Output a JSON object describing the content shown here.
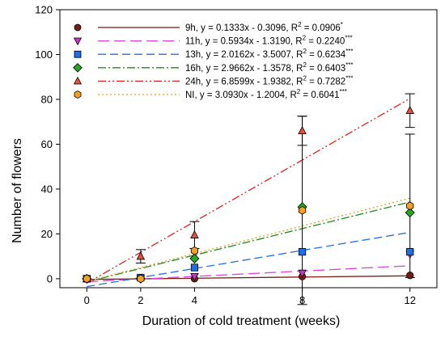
{
  "chart_data": {
    "type": "scatter",
    "xlabel": "Duration of cold treatment (weeks)",
    "ylabel": "Number of flowers",
    "xlim": [
      -1,
      13
    ],
    "ylim": [
      -4,
      120
    ],
    "xticks": [
      0,
      2,
      4,
      8,
      12
    ],
    "yticks": [
      0,
      20,
      40,
      60,
      80,
      100,
      120
    ],
    "grid": false,
    "legend_position": "top-left",
    "series": [
      {
        "name": "9h",
        "legend_label": "9h, y = 0.1333x - 0.3096, R² = 0.0906*",
        "eq_text": "9h, y = 0.1333x - 0.3096, R",
        "sig": "*",
        "marker": "circle",
        "marker_color": "#7a1a10",
        "line_color": "#7a1a10",
        "line_dash": "",
        "slope": 0.1333,
        "intercept": -0.3096,
        "x": [
          0,
          2,
          4,
          8,
          12
        ],
        "y": [
          0,
          0,
          0,
          1,
          1.5
        ],
        "err": [
          0,
          0,
          0,
          0,
          0
        ]
      },
      {
        "name": "11h",
        "legend_label": "11h, y = 0.5934x - 1.3190, R² = 0.2240***",
        "eq_text": "11h, y = 0.5934x - 1.3190, R",
        "sig": "***",
        "marker": "triangle-down",
        "marker_color": "#cc33cc",
        "line_color": "#e040e0",
        "line_dash": "14,6",
        "slope": 0.5934,
        "intercept": -1.319,
        "x": [
          0,
          2,
          4,
          8,
          12
        ],
        "y": [
          0,
          0,
          1,
          2.5,
          11
        ],
        "err": [
          0,
          0,
          0,
          0,
          0
        ]
      },
      {
        "name": "13h",
        "legend_label": "13h, y = 2.0162x - 3.5007, R² = 0.6234***",
        "eq_text": "13h, y = 2.0162x - 3.5007, R",
        "sig": "***",
        "marker": "square",
        "marker_color": "#1f6fe0",
        "line_color": "#1f6fe0",
        "line_dash": "10,5",
        "slope": 2.0162,
        "intercept": -3.5007,
        "x": [
          0,
          2,
          4,
          8,
          12
        ],
        "y": [
          0,
          0.5,
          5,
          12,
          12
        ],
        "err": [
          0,
          0,
          0,
          0,
          0
        ]
      },
      {
        "name": "16h",
        "legend_label": "16h, y = 2.9662x - 1.3578, R² = 0.6403***",
        "eq_text": "16h, y = 2.9662x - 1.3578, R",
        "sig": "***",
        "marker": "diamond",
        "marker_color": "#22aa22",
        "line_color": "#228822",
        "line_dash": "10,3,2,3",
        "slope": 2.9662,
        "intercept": -1.3578,
        "x": [
          0,
          2,
          4,
          8,
          12
        ],
        "y": [
          0,
          0,
          9,
          32,
          29.5
        ],
        "err": [
          0,
          0,
          0,
          0,
          0
        ]
      },
      {
        "name": "24h",
        "legend_label": "24h, y = 6.8599x - 1.9382, R² = 0.7282***",
        "eq_text": "24h, y = 6.8599x - 1.9382, R",
        "sig": "***",
        "marker": "triangle-up",
        "marker_color": "#e8503a",
        "line_color": "#e02020",
        "line_dash": "10,3,2,3,2,3",
        "slope": 6.8599,
        "intercept": -1.9382,
        "x": [
          0,
          2,
          4,
          8,
          12
        ],
        "y": [
          0,
          10,
          19.5,
          66,
          75
        ],
        "err": [
          0,
          3,
          6,
          6.5,
          7.5
        ]
      },
      {
        "name": "NI",
        "legend_label": "NI, y = 3.0930x - 1.2004, R² = 0.6041***",
        "eq_text": "NI, y = 3.0930x - 1.2004, R",
        "sig": "***",
        "marker": "hexagon",
        "marker_color": "#f5a020",
        "line_color": "#e0a020",
        "line_dash": "2,3",
        "slope": 3.093,
        "intercept": -1.2004,
        "x": [
          0,
          2,
          4,
          8,
          12
        ],
        "y": [
          0,
          0,
          12.5,
          30.5,
          32.5
        ],
        "err": [
          0,
          0,
          0,
          42,
          32
        ]
      }
    ]
  }
}
